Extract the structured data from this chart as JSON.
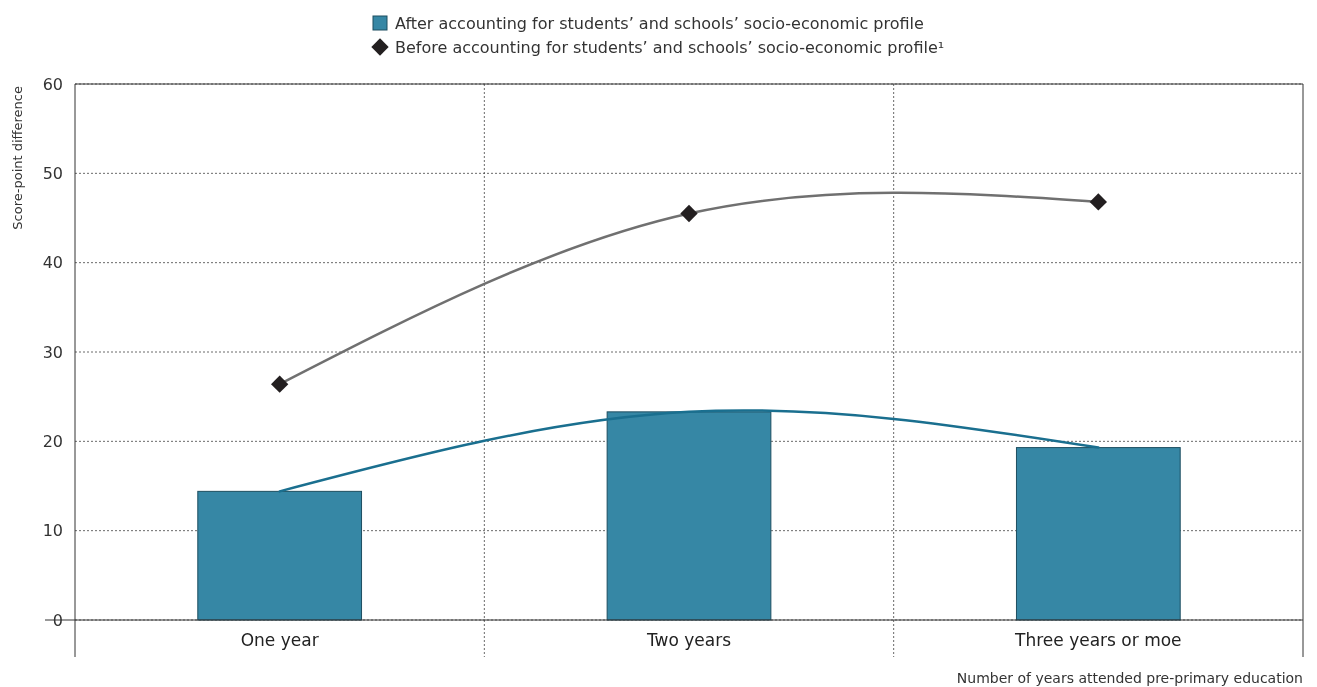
{
  "chart_data": {
    "type": "bar",
    "ylabel": "Score-point difference",
    "xlabel": "Number of years attended pre-primary education",
    "categories": [
      "One year",
      "Two years",
      "Three years or moe"
    ],
    "series": [
      {
        "name": "After accounting for students’ and schools’ socio-economic profile",
        "color": "#3687a5",
        "values": [
          14.4,
          23.3,
          19.3
        ]
      },
      {
        "type": "line",
        "color": "#1a6f8f",
        "marker": "none",
        "values": [
          14.4,
          23.3,
          19.3
        ]
      },
      {
        "name": "Before accounting for students’ and schools’ socio-economic profile¹",
        "type": "line",
        "color": "#231f20",
        "marker": "diamond",
        "values": [
          26.4,
          45.5,
          46.8
        ]
      }
    ],
    "ylim": [
      0,
      60
    ],
    "yticks": [
      0,
      10,
      20,
      30,
      40,
      50,
      60
    ],
    "grid": true,
    "legend": "top"
  }
}
